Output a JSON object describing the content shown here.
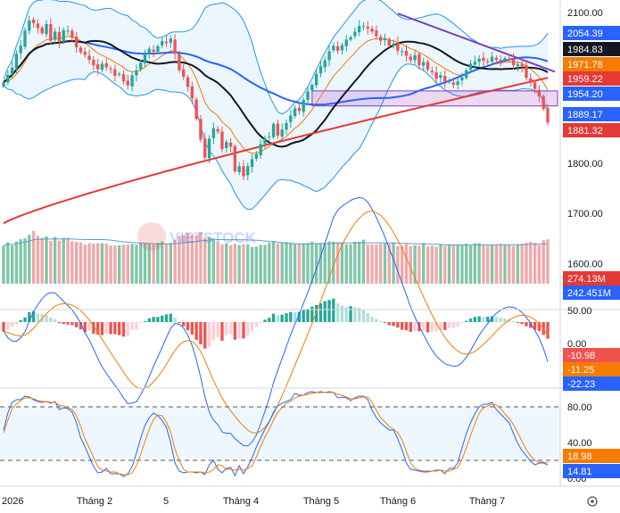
{
  "chart_data": {
    "type": "candlestick",
    "watermark": "VIETSTOCK",
    "x_labels": [
      "2026",
      "Tháng 2",
      "5",
      "Tháng 4",
      "Tháng 5",
      "Tháng 6",
      "Tháng 7"
    ],
    "price_axis": {
      "ticks": [
        "2100.00",
        "2000.00",
        "1900.00",
        "1800.00",
        "1700.00",
        "1600.00"
      ],
      "range": [
        1560,
        2125
      ]
    },
    "price_tags": [
      {
        "label": "2054.39",
        "color": "#2962ff"
      },
      {
        "label": "1984.83",
        "color": "#131722"
      },
      {
        "label": "1971.78",
        "color": "#f57c00"
      },
      {
        "label": "1959.22",
        "color": "#e53935"
      },
      {
        "label": "1954.20",
        "color": "#2962ff"
      },
      {
        "label": "1889.17",
        "color": "#2962ff"
      },
      {
        "label": "1881.32",
        "color": "#e53935"
      }
    ],
    "volume_tags": [
      {
        "label": "274.13M",
        "color": "#e53935"
      },
      {
        "label": "242.451M",
        "color": "#2962ff"
      }
    ],
    "macd": {
      "ticks": [
        "50.00",
        "0.00"
      ],
      "tags": [
        {
          "label": "-10.98",
          "color": "#ef5350"
        },
        {
          "label": "-11.25",
          "color": "#f57c00"
        },
        {
          "label": "-22.23",
          "color": "#2962ff"
        }
      ]
    },
    "stochastic": {
      "ticks": [
        "80.00",
        "40.00",
        "0.00"
      ],
      "tags": [
        {
          "label": "18.98",
          "color": "#f57c00"
        },
        {
          "label": "14.81",
          "color": "#2962ff"
        }
      ]
    },
    "colors": {
      "up": "#26a69a",
      "down": "#ef5350",
      "ma_black": "#131722",
      "ma_blue": "#2962ff",
      "ma_red": "#e53935",
      "ma_orange": "#f57c00",
      "band": "#2196f3",
      "trendline": "#7b3fbf"
    },
    "ohlc_close": [
      1961,
      1976,
      1990,
      2018,
      2034,
      2064,
      2084,
      2079,
      2069,
      2059,
      2077,
      2044,
      2062,
      2041,
      2065,
      2064,
      2050,
      2031,
      2021,
      2016,
      2006,
      1995,
      1987,
      1998,
      1991,
      1987,
      1974,
      1978,
      1963,
      1955,
      1975,
      1985,
      2000,
      2016,
      2028,
      2022,
      2033,
      2043,
      2039,
      2048,
      2018,
      1985,
      1972,
      1952,
      1929,
      1888,
      1847,
      1811,
      1849,
      1870,
      1863,
      1828,
      1842,
      1833,
      1784,
      1794,
      1774,
      1794,
      1808,
      1818,
      1838,
      1850,
      1853,
      1878,
      1855,
      1867,
      1880,
      1895,
      1909,
      1904,
      1926,
      1943,
      1956,
      1978,
      1993,
      2005,
      2023,
      2034,
      2024,
      2035,
      2046,
      2051,
      2062,
      2073,
      2074,
      2068,
      2062,
      2053,
      2044,
      2049,
      2034,
      2038,
      2024,
      2023,
      2014,
      2005,
      2015,
      1995,
      2001,
      1986,
      1981,
      1968,
      1975,
      1962,
      1963,
      1956,
      1963,
      1971,
      1985,
      1998,
      2002,
      2008,
      2004,
      2001,
      2012,
      2006,
      2004,
      2009,
      2006,
      1995,
      1997,
      1993,
      1970,
      1960,
      1948,
      1933,
      1908,
      1881
    ],
    "volume": [
      234,
      255,
      236,
      261,
      274,
      280,
      302,
      325,
      296,
      284,
      292,
      264,
      288,
      266,
      282,
      284,
      261,
      258,
      254,
      241,
      249,
      248,
      249,
      249,
      247,
      237,
      236,
      236,
      240,
      241,
      245,
      240,
      251,
      247,
      245,
      242,
      252,
      261,
      249,
      252,
      268,
      293,
      300,
      311,
      304,
      298,
      317,
      283,
      287,
      279,
      257,
      243,
      249,
      238,
      246,
      239,
      243,
      243,
      226,
      229,
      239,
      240,
      253,
      263,
      249,
      252,
      257,
      251,
      244,
      249,
      249,
      251,
      259,
      251,
      252,
      245,
      261,
      259,
      256,
      251,
      243,
      243,
      259,
      258,
      272,
      242,
      242,
      241,
      245,
      248,
      245,
      250,
      232,
      234,
      246,
      232,
      237,
      233,
      251,
      230,
      234,
      229,
      239,
      234,
      239,
      239,
      242,
      237,
      247,
      238,
      250,
      250,
      239,
      235,
      241,
      240,
      246,
      240,
      242,
      233,
      239,
      246,
      252,
      259,
      252,
      237,
      269,
      274
    ],
    "macd_hist": [
      -6.3,
      -5.3,
      -3.3,
      -1.7,
      1.2,
      3.1,
      6.5,
      7.1,
      5.5,
      5.4,
      4.7,
      3.1,
      1.9,
      -0.7,
      -1.3,
      -1.6,
      -1.9,
      -3.4,
      -4.8,
      -6.7,
      -5.7,
      -7.8,
      -8.3,
      -8.6,
      -7.5,
      -8.0,
      -8.0,
      -8.6,
      -9.6,
      -9.3,
      -5.2,
      -4.9,
      -0.6,
      0.6,
      2.5,
      3.4,
      3.4,
      4.2,
      5.1,
      5.5,
      2.9,
      -0.6,
      -2.7,
      -5.4,
      -8.2,
      -11.7,
      -14.7,
      -17.5,
      -16.2,
      -12.0,
      -9.9,
      -12.3,
      -8.6,
      -7.9,
      -11.6,
      -10.6,
      -10.8,
      -8.8,
      -6.1,
      -3.3,
      -0.1,
      1.6,
      2.9,
      5.5,
      4.4,
      4.9,
      5.8,
      6.7,
      6.5,
      6.8,
      8.3,
      8.8,
      10.2,
      11.3,
      12.4,
      13.8,
      14.6,
      15.5,
      12.3,
      10.8,
      10.0,
      10.5,
      9.7,
      9.4,
      8.2,
      5.9,
      3.5,
      2.1,
      0.6,
      -0.3,
      -2.1,
      -2.6,
      -3.6,
      -5.1,
      -5.4,
      -6.5,
      -6.1,
      -6.1,
      -5.9,
      -6.8,
      -6.6,
      -6.1,
      -5.2,
      -5.2,
      -3.9,
      -3.8,
      -2.8,
      -0.8,
      0.8,
      2.3,
      3.4,
      3.8,
      3.4,
      3.5,
      3.9,
      3.4,
      2.9,
      2.3,
      1.8,
      0.7,
      -0.4,
      -1.2,
      -2.8,
      -3.8,
      -5.1,
      -6.0,
      -8.5,
      -11.0
    ],
    "stoch_k": [
      54,
      73,
      85,
      88,
      88,
      92,
      91,
      88,
      86,
      85,
      86,
      84,
      86,
      77,
      79,
      78,
      74,
      62,
      45,
      35,
      24,
      13,
      6,
      7,
      11,
      5,
      5,
      5,
      2,
      5,
      13,
      28,
      45,
      59,
      68,
      73,
      70,
      65,
      57,
      40,
      17,
      8,
      6,
      7,
      7,
      6,
      7,
      4,
      15,
      20,
      10,
      6,
      11,
      12,
      3,
      14,
      5,
      13,
      23,
      35,
      45,
      55,
      63,
      74,
      81,
      84,
      86,
      88,
      95,
      93,
      93,
      96,
      97,
      96,
      97,
      96,
      97,
      96,
      90,
      91,
      90,
      87,
      90,
      92,
      92,
      88,
      76,
      68,
      62,
      58,
      54,
      54,
      44,
      32,
      17,
      10,
      9,
      8,
      7,
      7,
      8,
      9,
      9,
      5,
      11,
      11,
      17,
      34,
      50,
      62,
      72,
      80,
      83,
      83,
      85,
      77,
      72,
      67,
      62,
      50,
      39,
      31,
      25,
      19,
      15,
      17,
      17,
      15
    ],
    "stoch_d": [
      51,
      65,
      78,
      83,
      87,
      90,
      90,
      89,
      87,
      86,
      86,
      85,
      85,
      82,
      81,
      79,
      77,
      70,
      58,
      44,
      34,
      23,
      13,
      9,
      8,
      7,
      7,
      5,
      4,
      4,
      6,
      14,
      27,
      41,
      55,
      66,
      71,
      70,
      63,
      52,
      33,
      20,
      10,
      7,
      7,
      7,
      7,
      6,
      7,
      10,
      15,
      14,
      10,
      10,
      9,
      10,
      9,
      11,
      14,
      24,
      36,
      46,
      55,
      65,
      74,
      79,
      84,
      86,
      90,
      92,
      93,
      94,
      95,
      96,
      96,
      96,
      96,
      96,
      94,
      93,
      91,
      89,
      89,
      90,
      91,
      91,
      85,
      76,
      68,
      63,
      58,
      55,
      51,
      43,
      30,
      17,
      11,
      9,
      8,
      8,
      8,
      8,
      9,
      8,
      8,
      10,
      12,
      21,
      34,
      48,
      61,
      73,
      79,
      81,
      83,
      82,
      78,
      72,
      67,
      60,
      51,
      41,
      32,
      25,
      20,
      18,
      18,
      17
    ]
  }
}
